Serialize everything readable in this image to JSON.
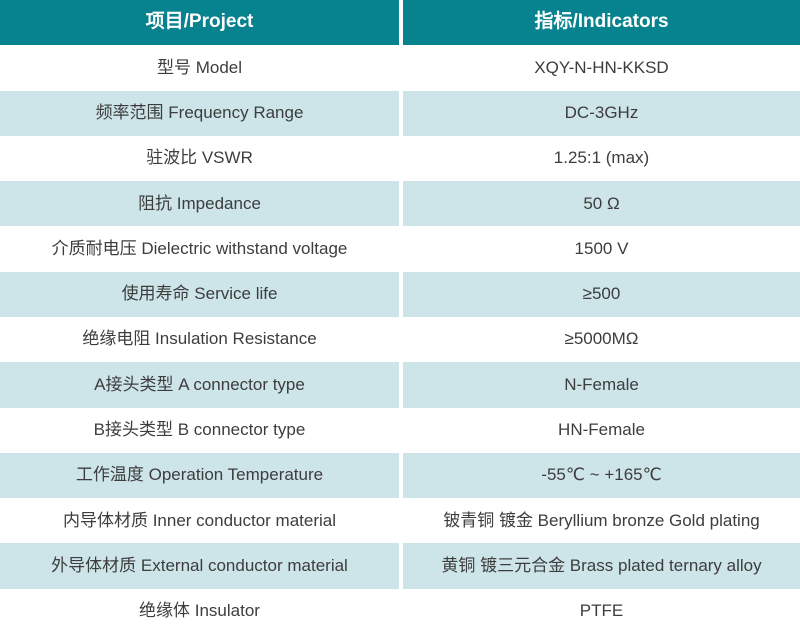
{
  "theme": {
    "header_bg": "#07828F",
    "header_text": "#FFFFFF",
    "row_bg": "#FFFFFF",
    "alt_row_bg": "#CDE4E9",
    "text_color": "#3D3D3D",
    "divider_color": "#FFFFFF"
  },
  "table": {
    "header": {
      "project": "项目/Project",
      "indicators": "指标/Indicators"
    },
    "rows": [
      {
        "label": "型号 Model",
        "value": "XQY-N-HN-KKSD"
      },
      {
        "label": "频率范围 Frequency Range",
        "value": "DC-3GHz"
      },
      {
        "label": "驻波比 VSWR",
        "value": "1.25:1 (max)"
      },
      {
        "label": "阻抗 Impedance",
        "value": "50 Ω"
      },
      {
        "label": "介质耐电压 Dielectric withstand voltage",
        "value": "1500 V"
      },
      {
        "label": "使用寿命 Service life",
        "value": "≥500"
      },
      {
        "label": "绝缘电阻 Insulation Resistance",
        "value": "≥5000MΩ"
      },
      {
        "label": "A接头类型 A connector type",
        "value": "N-Female"
      },
      {
        "label": "B接头类型 B connector type",
        "value": "HN-Female"
      },
      {
        "label": "工作温度 Operation Temperature",
        "value": "-55℃ ~ +165℃"
      },
      {
        "label": "内导体材质 Inner conductor material",
        "value": "铍青铜 镀金 Beryllium bronze Gold plating"
      },
      {
        "label": "外导体材质 External conductor material",
        "value": "黄铜 镀三元合金 Brass plated ternary alloy"
      },
      {
        "label": "绝缘体 Insulator",
        "value": "PTFE"
      }
    ]
  }
}
